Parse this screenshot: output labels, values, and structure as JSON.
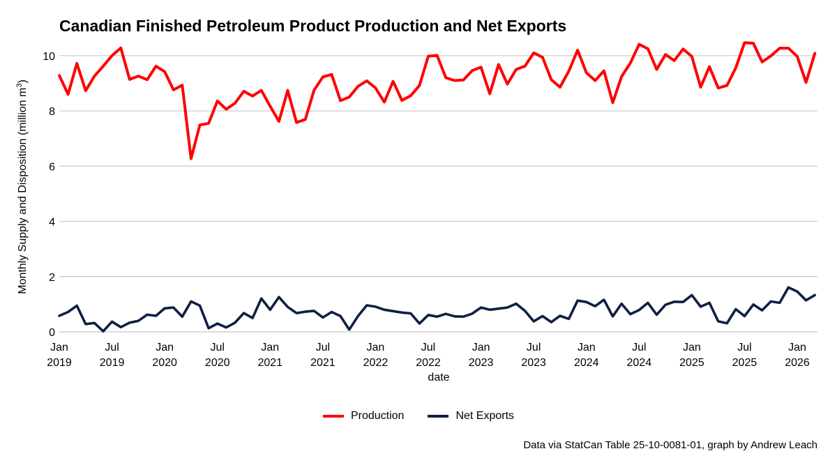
{
  "chart_data": {
    "type": "line",
    "title": "Canadian Finished Petroleum Product Production and Net Exports",
    "xlabel": "date",
    "ylabel_main": "Monthly Supply and Disposition (million m",
    "ylabel_sup": "3",
    "ylabel_end": ")",
    "x_start": "2019-01",
    "x_ticks": [
      {
        "month_index": 0,
        "line1": "Jan",
        "line2": "2019"
      },
      {
        "month_index": 6,
        "line1": "Jul",
        "line2": "2019"
      },
      {
        "month_index": 12,
        "line1": "Jan",
        "line2": "2020"
      },
      {
        "month_index": 18,
        "line1": "Jul",
        "line2": "2020"
      },
      {
        "month_index": 24,
        "line1": "Jan",
        "line2": "2021"
      },
      {
        "month_index": 30,
        "line1": "Jul",
        "line2": "2021"
      },
      {
        "month_index": 36,
        "line1": "Jan",
        "line2": "2022"
      },
      {
        "month_index": 42,
        "line1": "Jul",
        "line2": "2022"
      },
      {
        "month_index": 48,
        "line1": "Jan",
        "line2": "2023"
      },
      {
        "month_index": 54,
        "line1": "Jul",
        "line2": "2023"
      },
      {
        "month_index": 60,
        "line1": "Jan",
        "line2": "2024"
      },
      {
        "month_index": 66,
        "line1": "Jul",
        "line2": "2024"
      },
      {
        "month_index": 72,
        "line1": "Jan",
        "line2": "2025"
      },
      {
        "month_index": 78,
        "line1": "Jul",
        "line2": "2025"
      },
      {
        "month_index": 84,
        "line1": "Jan",
        "line2": "2026"
      }
    ],
    "xlim_months": [
      0,
      86.3
    ],
    "ylim": [
      0,
      10.5
    ],
    "y_ticks": [
      0,
      2,
      4,
      6,
      8,
      10
    ],
    "grid": "horizontal",
    "legend_position": "bottom",
    "series": [
      {
        "name": "Production",
        "color": "#ff0000",
        "values": [
          9.28,
          8.6,
          9.72,
          8.73,
          9.26,
          9.62,
          10.0,
          10.28,
          9.14,
          9.26,
          9.13,
          9.62,
          9.42,
          8.76,
          8.93,
          6.27,
          7.49,
          7.55,
          8.36,
          8.06,
          8.28,
          8.71,
          8.54,
          8.74,
          8.17,
          7.62,
          8.74,
          7.58,
          7.69,
          8.75,
          9.23,
          9.32,
          8.37,
          8.5,
          8.89,
          9.09,
          8.83,
          8.32,
          9.07,
          8.38,
          8.55,
          8.92,
          9.98,
          10.01,
          9.2,
          9.1,
          9.12,
          9.46,
          9.58,
          8.62,
          9.68,
          8.97,
          9.5,
          9.62,
          10.1,
          9.94,
          9.13,
          8.86,
          9.44,
          10.2,
          9.38,
          9.1,
          9.45,
          8.3,
          9.24,
          9.73,
          10.41,
          10.25,
          9.5,
          10.04,
          9.82,
          10.24,
          9.97,
          8.86,
          9.6,
          8.83,
          8.92,
          9.56,
          10.47,
          10.45,
          9.77,
          9.99,
          10.27,
          10.27,
          9.97,
          9.03,
          10.08
        ]
      },
      {
        "name": "Net Exports",
        "color": "#0e2042",
        "values": [
          0.58,
          0.72,
          0.95,
          0.28,
          0.32,
          0.02,
          0.37,
          0.17,
          0.33,
          0.4,
          0.62,
          0.58,
          0.85,
          0.88,
          0.55,
          1.1,
          0.95,
          0.13,
          0.3,
          0.16,
          0.33,
          0.68,
          0.5,
          1.21,
          0.8,
          1.26,
          0.9,
          0.68,
          0.73,
          0.76,
          0.52,
          0.72,
          0.57,
          0.08,
          0.57,
          0.96,
          0.91,
          0.8,
          0.75,
          0.7,
          0.67,
          0.3,
          0.61,
          0.55,
          0.65,
          0.56,
          0.55,
          0.66,
          0.88,
          0.8,
          0.84,
          0.88,
          1.02,
          0.76,
          0.38,
          0.57,
          0.35,
          0.58,
          0.47,
          1.13,
          1.08,
          0.93,
          1.16,
          0.56,
          1.02,
          0.64,
          0.79,
          1.05,
          0.62,
          0.98,
          1.09,
          1.08,
          1.33,
          0.91,
          1.05,
          0.38,
          0.31,
          0.82,
          0.57,
          0.99,
          0.78,
          1.1,
          1.05,
          1.61,
          1.46,
          1.14,
          1.33
        ]
      }
    ]
  },
  "caption": "Data via StatCan Table 25-10-0081-01, graph by Andrew Leach"
}
